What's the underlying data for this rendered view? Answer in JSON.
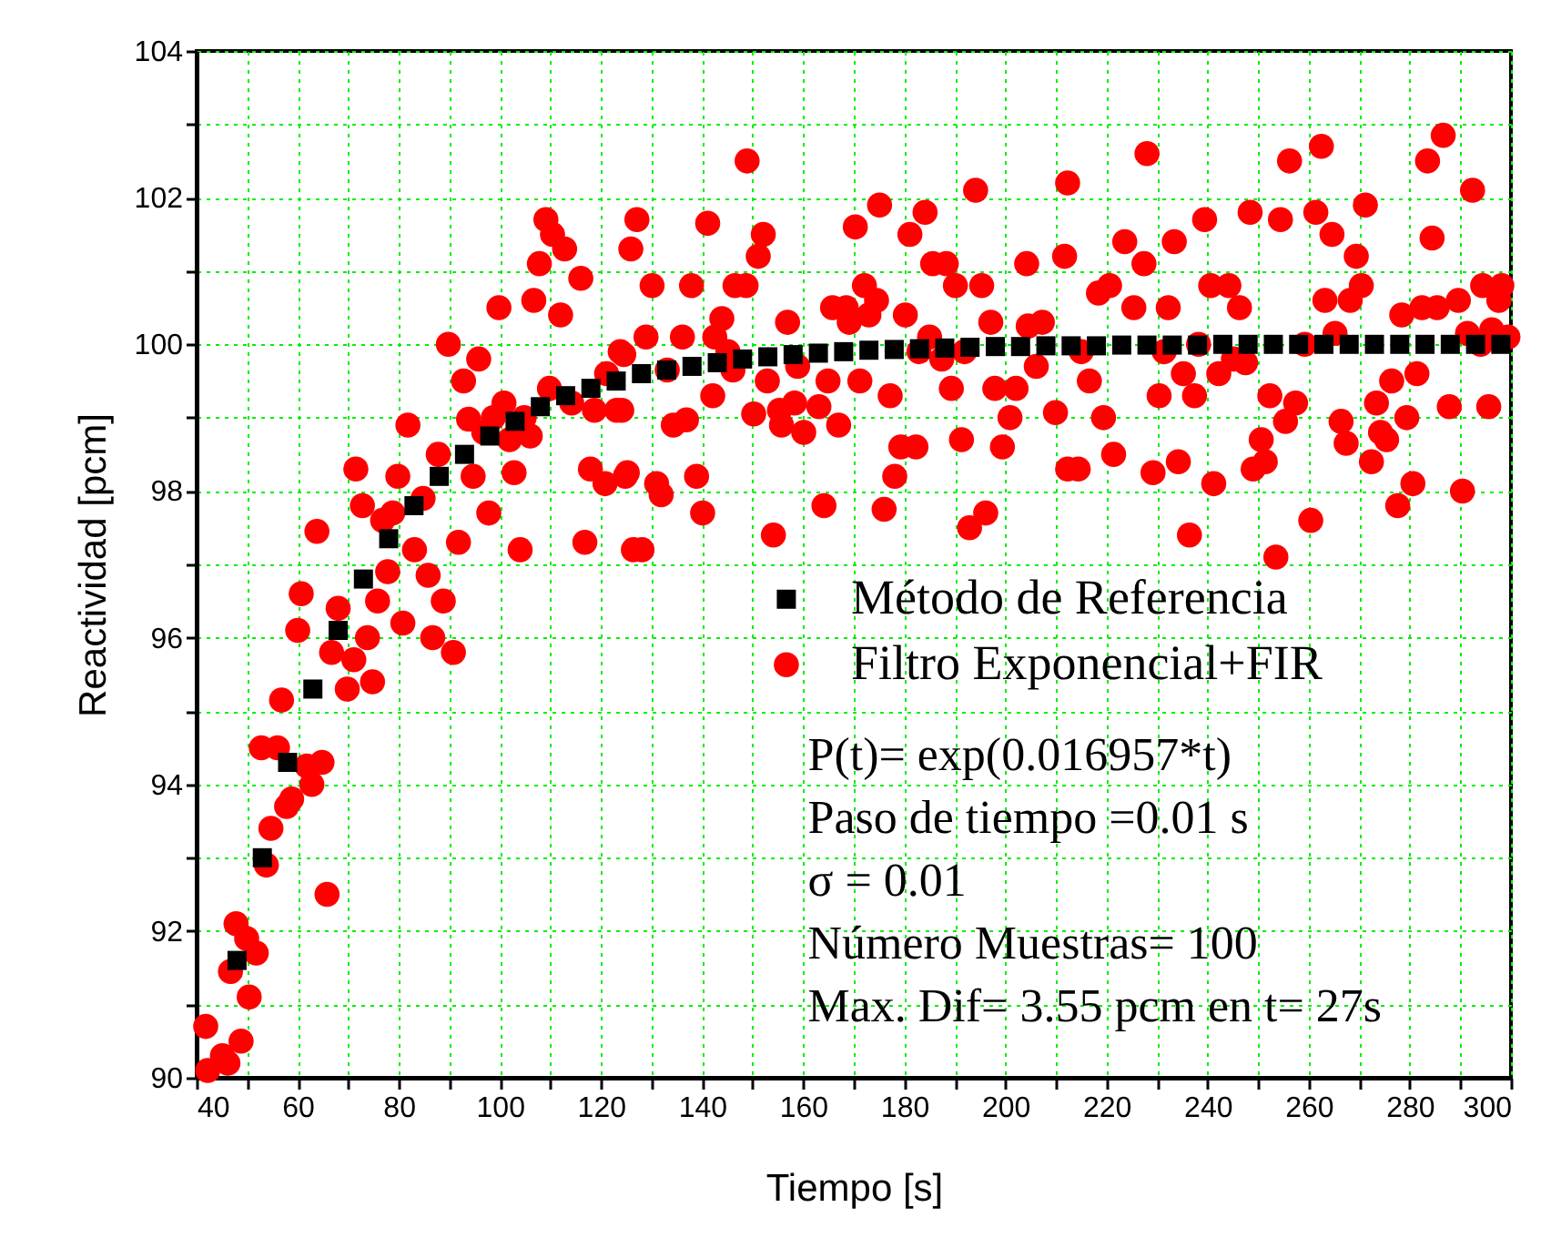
{
  "chart_data": {
    "type": "scatter",
    "xlabel": "Tiempo [s]",
    "ylabel": "Reactividad [pcm]",
    "xlim": [
      40,
      300
    ],
    "ylim": [
      90,
      104
    ],
    "xticks": [
      40,
      {
        "value": 50,
        "label": null
      },
      60,
      {
        "value": 70,
        "label": null
      },
      80,
      {
        "value": 90,
        "label": null
      },
      100,
      {
        "value": 110,
        "label": null
      },
      120,
      {
        "value": 130,
        "label": null
      },
      140,
      {
        "value": 150,
        "label": null
      },
      160,
      {
        "value": 170,
        "label": null
      },
      180,
      {
        "value": 190,
        "label": null
      },
      200,
      {
        "value": 210,
        "label": null
      },
      220,
      {
        "value": 230,
        "label": null
      },
      240,
      {
        "value": 250,
        "label": null
      },
      260,
      {
        "value": 270,
        "label": null
      },
      280,
      {
        "value": 290,
        "label": null
      },
      300
    ],
    "yticks": [
      90,
      {
        "value": 91,
        "label": null
      },
      92,
      {
        "value": 93,
        "label": null
      },
      94,
      {
        "value": 95,
        "label": null
      },
      96,
      {
        "value": 97,
        "label": null
      },
      98,
      {
        "value": 99,
        "label": null
      },
      100,
      {
        "value": 101,
        "label": null
      },
      102,
      {
        "value": 103,
        "label": null
      },
      104
    ],
    "grid": true,
    "legend": "right",
    "annotations": [
      "P(t)= exp(0.016957*t)",
      "Paso de tiempo =0.01 s",
      "σ = 0.01",
      "Número Muestras= 100",
      "Max. Dif=  3.55  pcm en t= 27s"
    ],
    "series": [
      {
        "name": "Método de Referencia",
        "color": "#000000",
        "marker": "square",
        "x": [
          48,
          53,
          58,
          63,
          68,
          73,
          78,
          83,
          88,
          93,
          98,
          103,
          108,
          113,
          118,
          123,
          128,
          133,
          138,
          143,
          148,
          153,
          158,
          163,
          168,
          173,
          178,
          183,
          188,
          193,
          198,
          203,
          208,
          213,
          218,
          223,
          228,
          233,
          238,
          243,
          248,
          253,
          258,
          263,
          268,
          273,
          278,
          283,
          288,
          293,
          298
        ],
        "values": [
          91.6,
          93.0,
          94.3,
          95.3,
          96.1,
          96.8,
          97.35,
          97.8,
          98.2,
          98.5,
          98.75,
          98.95,
          99.15,
          99.3,
          99.4,
          99.5,
          99.6,
          99.65,
          99.7,
          99.75,
          99.8,
          99.83,
          99.86,
          99.88,
          99.9,
          99.92,
          99.93,
          99.94,
          99.95,
          99.96,
          99.97,
          99.97,
          99.98,
          99.98,
          99.98,
          99.99,
          99.99,
          99.99,
          99.99,
          100,
          100,
          100,
          100,
          100,
          100,
          100,
          100,
          100,
          100,
          100,
          100
        ]
      },
      {
        "name": " Filtro Exponencial+FIR",
        "color": "#ff0000",
        "marker": "circle",
        "x": [
          41.8,
          42.2,
          45.1,
          46.2,
          48.8,
          50.4,
          46.7,
          47.8,
          49.9,
          51.8,
          53.8,
          54.7,
          57.8,
          58.8,
          52.8,
          56.0,
          61.8,
          62.8,
          64.8,
          56.8,
          65.8,
          60.0,
          60.7,
          63.8,
          66.7,
          69.8,
          71.1,
          68.0,
          74.8,
          73.8,
          75.8,
          77.8,
          80.8,
          85.8,
          86.7,
          88.8,
          90.8,
          71.5,
          72.8,
          76.8,
          78.8,
          79.8,
          83.1,
          84.8,
          81.8,
          87.8,
          94.7,
          91.8,
          97.8,
          89.8,
          92.8,
          95.8,
          93.8,
          96.8,
          99.8,
          98.7,
          100.8,
          101.9,
          104.8,
          106.0,
          102.8,
          104.0,
          106.7,
          107.8,
          109.1,
          110.4,
          112.8,
          112.0,
          116.0,
          109.8,
          114.2,
          118.7,
          123.1,
          123.8,
          121.1,
          117.9,
          120.8,
          124.8,
          116.8,
          126.4,
          148.9,
          127.1,
          125.9,
          141.1,
          152.1,
          151.1,
          130.1,
          137.9,
          146.5,
          148.7,
          143.9,
          128.9,
          136.1,
          142.5,
          145.1,
          124.5,
          133.1,
          146.1,
          156.9,
          152.9,
          158.9,
          142.1,
          124.1,
          134.3,
          136.9,
          150.2,
          155.3,
          158.3,
          155.7,
          160.1,
          163.1,
          164.9,
          167.0,
          171.2,
          177.2,
          125.2,
          131.0,
          131.9,
          138.9,
          140.1,
          128.1,
          154.1,
          164.1,
          176.0,
          178.1,
          179.3,
          182.3,
          165.8,
          168.5,
          169.1,
          172.1,
          174.5,
          173.0,
          170.3,
          175.1,
          184.1,
          181.1,
          185.6,
          188.3,
          190.1,
          195.3,
          180.2,
          185.0,
          182.9,
          187.4,
          191.9,
          189.3,
          197.1,
          197.9,
          202.1,
          206.1,
          204.5,
          207.3,
          204.2,
          211.7,
          212.3,
          194.1,
          200.9,
          199.4,
          191.3,
          192.9,
          196.1,
          209.9,
          212.3,
          228.0,
          256.2,
          262.5,
          286.6,
          283.5,
          292.4,
          271.2,
          248.4,
          254.4,
          261.4,
          239.4,
          264.6,
          284.4,
          223.6,
          233.4,
          227.4,
          269.4,
          218.4,
          220.6,
          225.4,
          232.2,
          240.6,
          244.2,
          246.3,
          263.2,
          268.2,
          270.4,
          278.4,
          282.4,
          285.4,
          289.6,
          294.4,
          298.2,
          297.6,
          291.4,
          294.0,
          296.2,
          299.4,
          259.2,
          265.2,
          215.0,
          231.4,
          238.2,
          245.1,
          247.5,
          235.2,
          242.2,
          216.6,
          230.4,
          237.4,
          252.3,
          276.4,
          281.4,
          273.4,
          257.4,
          255.4,
          219.4,
          266.4,
          279.4,
          287.8,
          295.6,
          267.4,
          274.2,
          275.4,
          250.6,
          251.4,
          249.0,
          272.4,
          214.4,
          221.4,
          229.2,
          234.2,
          241.2,
          280.6,
          290.4,
          277.6,
          260.4,
          236.4,
          253.5
        ],
        "values": [
          90.7,
          90.1,
          90.3,
          90.2,
          90.5,
          91.1,
          91.45,
          92.1,
          91.9,
          91.7,
          92.9,
          93.4,
          93.7,
          93.8,
          94.5,
          94.5,
          94.25,
          94.0,
          94.3,
          95.15,
          92.5,
          96.1,
          96.6,
          97.45,
          95.8,
          95.3,
          95.7,
          96.4,
          95.4,
          96.0,
          96.5,
          96.9,
          96.2,
          96.85,
          96.0,
          96.5,
          95.8,
          98.3,
          97.8,
          97.6,
          97.7,
          98.2,
          97.2,
          97.9,
          98.9,
          98.5,
          98.2,
          97.3,
          97.7,
          100.0,
          99.5,
          99.8,
          98.98,
          98.8,
          100.5,
          99.0,
          99.2,
          98.7,
          99.0,
          98.75,
          98.25,
          97.2,
          100.6,
          101.1,
          101.7,
          101.5,
          101.3,
          100.4,
          100.9,
          99.4,
          99.2,
          99.1,
          99.1,
          99.9,
          99.6,
          98.3,
          98.1,
          98.2,
          97.3,
          97.2,
          102.5,
          101.7,
          101.3,
          101.65,
          101.5,
          101.2,
          100.8,
          100.8,
          100.8,
          100.8,
          100.35,
          100.1,
          100.1,
          100.1,
          99.9,
          99.86,
          99.65,
          99.65,
          100.3,
          99.5,
          99.7,
          99.3,
          99.1,
          98.9,
          98.97,
          99.05,
          99.1,
          99.2,
          98.9,
          98.8,
          99.15,
          99.5,
          98.9,
          99.5,
          99.3,
          98.25,
          98.1,
          97.95,
          98.2,
          97.7,
          97.2,
          97.4,
          97.8,
          97.75,
          98.2,
          98.6,
          98.6,
          100.5,
          100.5,
          100.3,
          100.8,
          100.6,
          100.4,
          101.6,
          101.9,
          101.8,
          101.5,
          101.1,
          101.1,
          100.8,
          100.8,
          100.4,
          100.1,
          99.9,
          99.8,
          99.9,
          99.4,
          100.3,
          99.4,
          99.4,
          99.7,
          100.25,
          100.3,
          101.1,
          101.2,
          102.2,
          102.1,
          99.0,
          98.6,
          98.7,
          97.5,
          97.7,
          99.07,
          98.3,
          102.6,
          102.5,
          102.7,
          102.85,
          102.5,
          102.1,
          101.9,
          101.8,
          101.7,
          101.8,
          101.7,
          101.5,
          101.45,
          101.4,
          101.4,
          101.1,
          101.2,
          100.7,
          100.8,
          100.5,
          100.5,
          100.8,
          100.8,
          100.5,
          100.6,
          100.6,
          100.8,
          100.4,
          100.5,
          100.5,
          100.6,
          100.8,
          100.8,
          100.6,
          100.15,
          100.0,
          100.2,
          100.1,
          100.0,
          100.15,
          99.9,
          99.9,
          100.0,
          99.8,
          99.75,
          99.6,
          99.6,
          99.5,
          99.3,
          99.3,
          99.3,
          99.5,
          99.6,
          99.2,
          99.2,
          98.95,
          99.0,
          98.95,
          99.0,
          99.15,
          99.15,
          98.65,
          98.8,
          98.7,
          98.7,
          98.4,
          98.3,
          98.4,
          98.3,
          98.5,
          98.25,
          98.4,
          98.1,
          98.1,
          98.0,
          97.8,
          97.6,
          97.4,
          97.1
        ]
      }
    ]
  }
}
